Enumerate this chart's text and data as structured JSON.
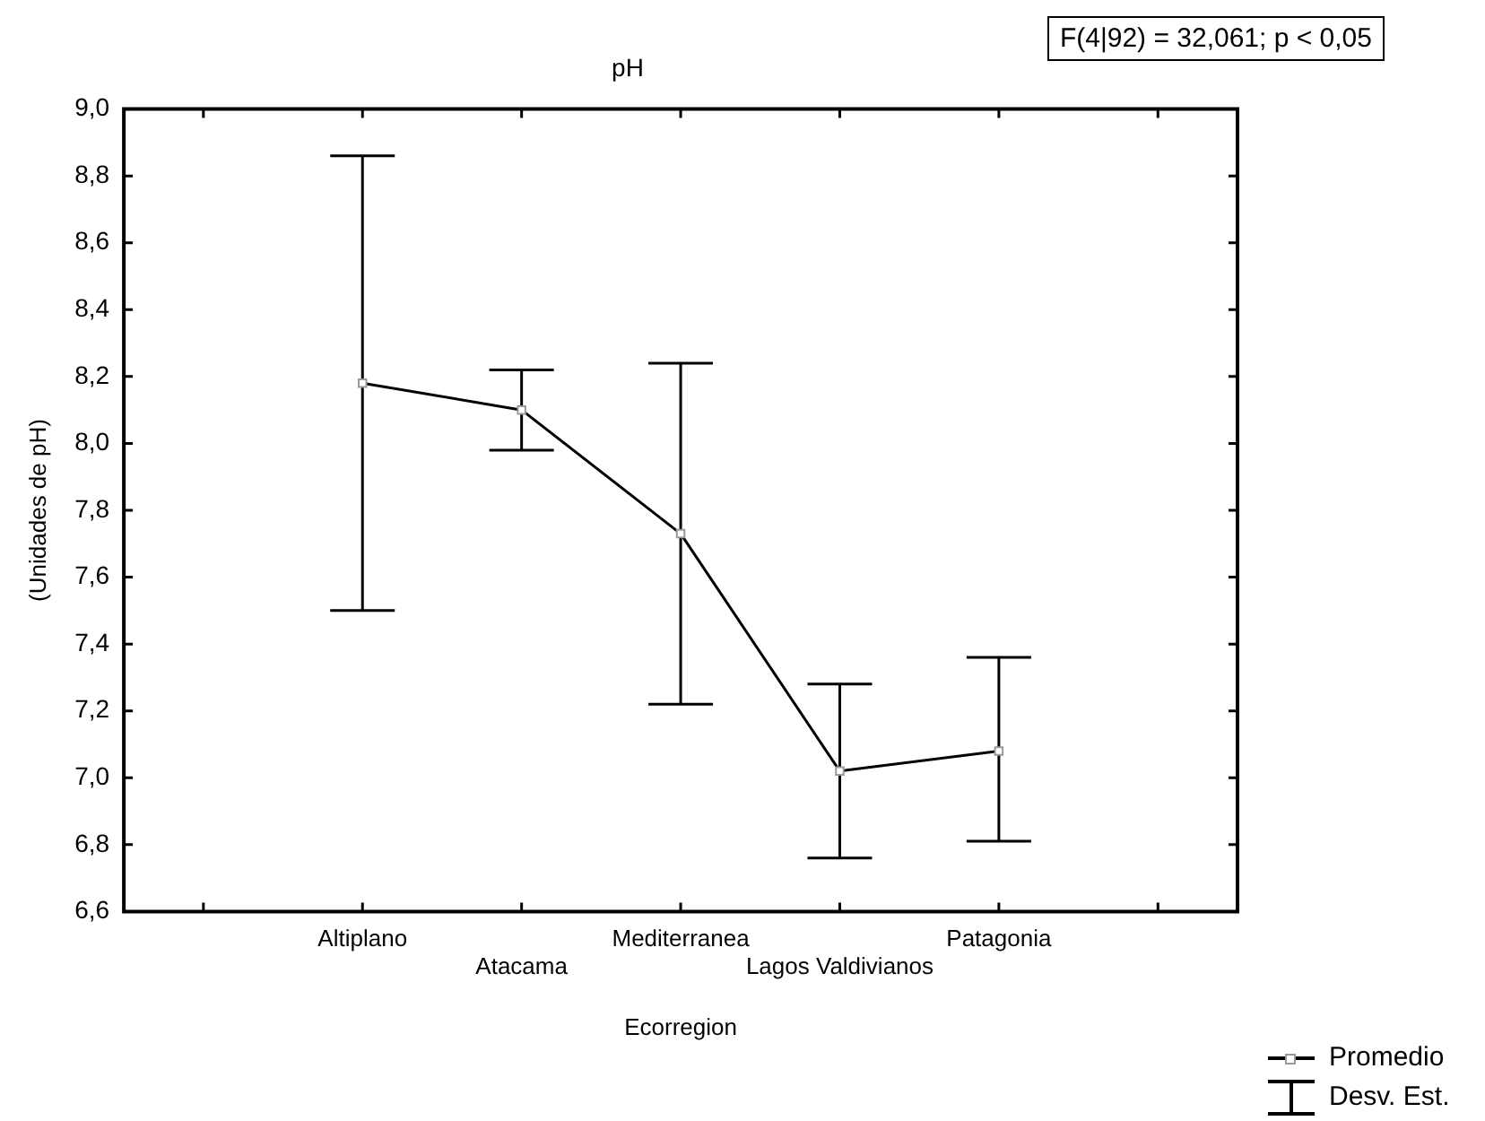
{
  "chart_data": {
    "type": "line",
    "title": "pH",
    "xlabel": "Ecorregion",
    "ylabel": "(Unidades de pH)",
    "categories": [
      "Altiplano",
      "Atacama",
      "Mediterranea",
      "Lagos Valdivianos",
      "Patagonia"
    ],
    "series": [
      {
        "name": "Promedio",
        "color": "#000000",
        "values": [
          8.18,
          8.1,
          7.73,
          7.02,
          7.08
        ],
        "errors": [
          [
            7.5,
            8.86
          ],
          [
            7.98,
            8.22
          ],
          [
            7.22,
            8.24
          ],
          [
            6.76,
            7.28
          ],
          [
            6.81,
            7.36
          ]
        ]
      }
    ],
    "ylim": [
      6.6,
      9.0
    ],
    "yticks": [
      {
        "value": 6.6,
        "label": "6,6"
      },
      {
        "value": 6.8,
        "label": "6,8"
      },
      {
        "value": 7.0,
        "label": "7,0"
      },
      {
        "value": 7.2,
        "label": "7,2"
      },
      {
        "value": 7.4,
        "label": "7,4"
      },
      {
        "value": 7.6,
        "label": "7,6"
      },
      {
        "value": 7.8,
        "label": "7,8"
      },
      {
        "value": 8.0,
        "label": "8,0"
      },
      {
        "value": 8.2,
        "label": "8,2"
      },
      {
        "value": 8.4,
        "label": "8,4"
      },
      {
        "value": 8.6,
        "label": "8,6"
      },
      {
        "value": 8.8,
        "label": "8,8"
      },
      {
        "value": 9.0,
        "label": "9,0"
      }
    ],
    "annotations": [
      "F(4|92) = 32,061; p < 0,05",
      "Desv. Est."
    ],
    "legend": "bottom right",
    "grid": false,
    "marker": "square",
    "line_style": "solid"
  }
}
